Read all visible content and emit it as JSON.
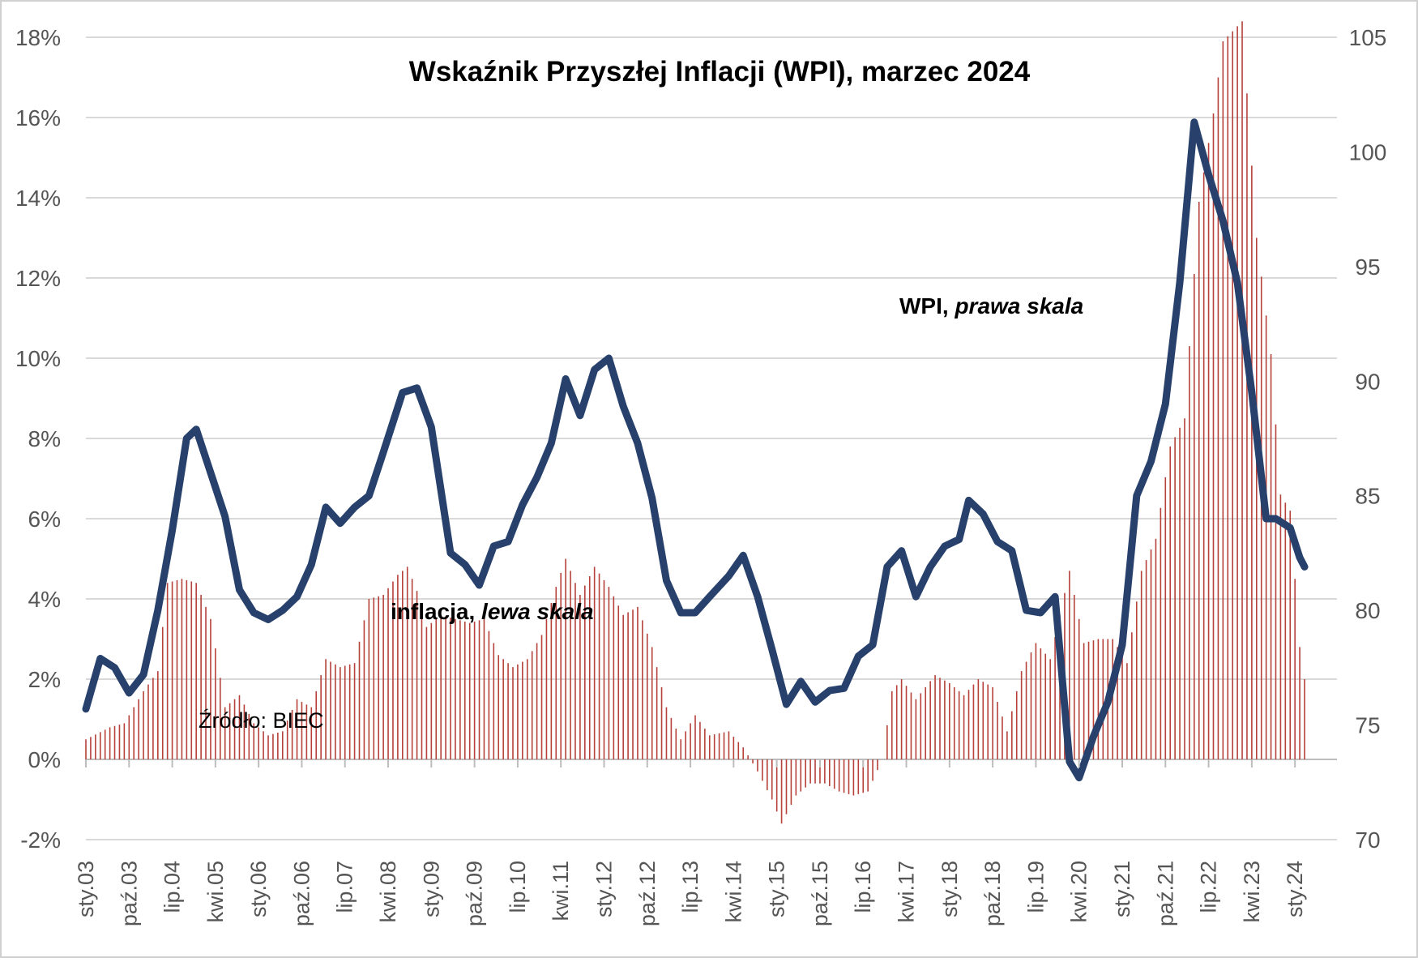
{
  "chart_data": {
    "type": "bar+line",
    "title": "Wskaźnik Przyszłej Inflacji (WPI), marzec 2024",
    "source": "Źródło: BIEC",
    "left_axis": {
      "ticks": [
        "-2%",
        "0%",
        "2%",
        "4%",
        "6%",
        "8%",
        "10%",
        "12%",
        "14%",
        "16%",
        "18%"
      ],
      "min": -2,
      "max": 18,
      "unit": "%"
    },
    "right_axis": {
      "ticks": [
        "70",
        "75",
        "80",
        "85",
        "90",
        "95",
        "100",
        "105"
      ],
      "min": 70,
      "max": 105
    },
    "x_tick_labels": [
      "sty.03",
      "paź.03",
      "lip.04",
      "kwi.05",
      "sty.06",
      "paź.06",
      "lip.07",
      "kwi.08",
      "sty.09",
      "paź.09",
      "lip.10",
      "kwi.11",
      "sty.12",
      "paź.12",
      "lip.13",
      "kwi.14",
      "sty.15",
      "paź.15",
      "lip.16",
      "kwi.17",
      "sty.18",
      "paź.18",
      "lip.19",
      "kwi.20",
      "sty.21",
      "paź.21",
      "lip.22",
      "kwi.23",
      "sty.24"
    ],
    "x_start": "2003-01",
    "x_end": "2024-03",
    "series": [
      {
        "name": "inflacja, lewa skala",
        "label_main": "inflacja, ",
        "label_italic": "lewa skala",
        "kind": "bar",
        "axis": "left",
        "color": "#B5413A",
        "anchors": [
          [
            "2003-01",
            0.5
          ],
          [
            "2003-06",
            0.8
          ],
          [
            "2003-09",
            0.9
          ],
          [
            "2004-01",
            1.7
          ],
          [
            "2004-04",
            2.2
          ],
          [
            "2004-06",
            4.4
          ],
          [
            "2004-09",
            4.5
          ],
          [
            "2004-12",
            4.4
          ],
          [
            "2005-03",
            3.5
          ],
          [
            "2005-06",
            1.3
          ],
          [
            "2005-09",
            1.6
          ],
          [
            "2005-12",
            0.9
          ],
          [
            "2006-03",
            0.6
          ],
          [
            "2006-06",
            0.7
          ],
          [
            "2006-09",
            1.5
          ],
          [
            "2006-12",
            1.3
          ],
          [
            "2007-03",
            2.5
          ],
          [
            "2007-06",
            2.3
          ],
          [
            "2007-09",
            2.4
          ],
          [
            "2007-12",
            4.0
          ],
          [
            "2008-03",
            4.1
          ],
          [
            "2008-06",
            4.6
          ],
          [
            "2008-08",
            4.8
          ],
          [
            "2008-10",
            4.2
          ],
          [
            "2008-12",
            3.3
          ],
          [
            "2009-03",
            3.6
          ],
          [
            "2009-06",
            3.5
          ],
          [
            "2009-09",
            3.4
          ],
          [
            "2009-12",
            3.5
          ],
          [
            "2010-03",
            2.6
          ],
          [
            "2010-06",
            2.3
          ],
          [
            "2010-09",
            2.5
          ],
          [
            "2010-12",
            3.1
          ],
          [
            "2011-03",
            4.3
          ],
          [
            "2011-05",
            5.0
          ],
          [
            "2011-08",
            4.1
          ],
          [
            "2011-11",
            4.8
          ],
          [
            "2012-02",
            4.3
          ],
          [
            "2012-05",
            3.6
          ],
          [
            "2012-08",
            3.8
          ],
          [
            "2012-11",
            2.8
          ],
          [
            "2013-02",
            1.3
          ],
          [
            "2013-05",
            0.5
          ],
          [
            "2013-08",
            1.1
          ],
          [
            "2013-11",
            0.6
          ],
          [
            "2014-03",
            0.7
          ],
          [
            "2014-06",
            0.3
          ],
          [
            "2014-09",
            -0.3
          ],
          [
            "2014-12",
            -1.0
          ],
          [
            "2015-02",
            -1.6
          ],
          [
            "2015-05",
            -0.9
          ],
          [
            "2015-08",
            -0.6
          ],
          [
            "2015-11",
            -0.6
          ],
          [
            "2016-02",
            -0.8
          ],
          [
            "2016-05",
            -0.9
          ],
          [
            "2016-08",
            -0.8
          ],
          [
            "2016-11",
            0.0
          ],
          [
            "2017-01",
            1.7
          ],
          [
            "2017-03",
            2.0
          ],
          [
            "2017-06",
            1.5
          ],
          [
            "2017-10",
            2.1
          ],
          [
            "2018-01",
            1.9
          ],
          [
            "2018-04",
            1.6
          ],
          [
            "2018-07",
            2.0
          ],
          [
            "2018-10",
            1.8
          ],
          [
            "2019-01",
            0.7
          ],
          [
            "2019-04",
            2.2
          ],
          [
            "2019-07",
            2.9
          ],
          [
            "2019-10",
            2.5
          ],
          [
            "2020-02",
            4.7
          ],
          [
            "2020-05",
            2.9
          ],
          [
            "2020-08",
            3.0
          ],
          [
            "2020-11",
            3.0
          ],
          [
            "2021-02",
            2.4
          ],
          [
            "2021-05",
            4.7
          ],
          [
            "2021-08",
            5.5
          ],
          [
            "2021-11",
            7.8
          ],
          [
            "2022-02",
            8.5
          ],
          [
            "2022-05",
            13.9
          ],
          [
            "2022-08",
            16.1
          ],
          [
            "2022-10",
            17.9
          ],
          [
            "2023-02",
            18.4
          ],
          [
            "2023-05",
            13.0
          ],
          [
            "2023-08",
            10.1
          ],
          [
            "2023-10",
            6.6
          ],
          [
            "2023-12",
            6.2
          ],
          [
            "2024-02",
            2.8
          ],
          [
            "2024-03",
            2.0
          ]
        ]
      },
      {
        "name": "WPI, prawa skala",
        "label_main": "WPI, ",
        "label_italic": "prawa skala",
        "kind": "line",
        "axis": "right",
        "color": "#27416C",
        "anchors": [
          [
            "2003-01",
            75.7
          ],
          [
            "2003-04",
            77.9
          ],
          [
            "2003-07",
            77.5
          ],
          [
            "2003-10",
            76.4
          ],
          [
            "2004-01",
            77.2
          ],
          [
            "2004-04",
            80.0
          ],
          [
            "2004-07",
            83.5
          ],
          [
            "2004-10",
            87.5
          ],
          [
            "2004-12",
            87.9
          ],
          [
            "2005-03",
            86.0
          ],
          [
            "2005-06",
            84.1
          ],
          [
            "2005-09",
            80.9
          ],
          [
            "2005-12",
            79.9
          ],
          [
            "2006-03",
            79.6
          ],
          [
            "2006-06",
            80.0
          ],
          [
            "2006-09",
            80.6
          ],
          [
            "2006-12",
            82.0
          ],
          [
            "2007-03",
            84.5
          ],
          [
            "2007-06",
            83.8
          ],
          [
            "2007-09",
            84.5
          ],
          [
            "2007-12",
            85.0
          ],
          [
            "2008-03",
            86.9
          ],
          [
            "2008-07",
            89.5
          ],
          [
            "2008-10",
            89.7
          ],
          [
            "2009-01",
            88.0
          ],
          [
            "2009-05",
            82.5
          ],
          [
            "2009-08",
            82.0
          ],
          [
            "2009-11",
            81.1
          ],
          [
            "2010-02",
            82.8
          ],
          [
            "2010-05",
            83.0
          ],
          [
            "2010-08",
            84.6
          ],
          [
            "2010-11",
            85.8
          ],
          [
            "2011-02",
            87.3
          ],
          [
            "2011-05",
            90.1
          ],
          [
            "2011-08",
            88.5
          ],
          [
            "2011-11",
            90.5
          ],
          [
            "2012-02",
            91.0
          ],
          [
            "2012-05",
            88.9
          ],
          [
            "2012-08",
            87.3
          ],
          [
            "2012-11",
            84.9
          ],
          [
            "2013-02",
            81.3
          ],
          [
            "2013-05",
            79.9
          ],
          [
            "2013-08",
            79.9
          ],
          [
            "2013-11",
            80.6
          ],
          [
            "2014-03",
            81.5
          ],
          [
            "2014-06",
            82.4
          ],
          [
            "2014-09",
            80.6
          ],
          [
            "2014-12",
            78.3
          ],
          [
            "2015-03",
            75.9
          ],
          [
            "2015-06",
            76.9
          ],
          [
            "2015-09",
            76.0
          ],
          [
            "2015-12",
            76.5
          ],
          [
            "2016-03",
            76.6
          ],
          [
            "2016-06",
            78.0
          ],
          [
            "2016-09",
            78.5
          ],
          [
            "2016-12",
            81.9
          ],
          [
            "2017-03",
            82.6
          ],
          [
            "2017-06",
            80.6
          ],
          [
            "2017-09",
            81.9
          ],
          [
            "2017-12",
            82.8
          ],
          [
            "2018-03",
            83.1
          ],
          [
            "2018-05",
            84.8
          ],
          [
            "2018-08",
            84.2
          ],
          [
            "2018-11",
            83.0
          ],
          [
            "2019-02",
            82.6
          ],
          [
            "2019-05",
            80.0
          ],
          [
            "2019-08",
            79.9
          ],
          [
            "2019-11",
            80.6
          ],
          [
            "2020-02",
            73.4
          ],
          [
            "2020-04",
            72.7
          ],
          [
            "2020-07",
            74.5
          ],
          [
            "2020-10",
            76.0
          ],
          [
            "2021-01",
            78.5
          ],
          [
            "2021-04",
            85.0
          ],
          [
            "2021-07",
            86.5
          ],
          [
            "2021-10",
            89.0
          ],
          [
            "2022-01",
            94.3
          ],
          [
            "2022-04",
            101.3
          ],
          [
            "2022-07",
            99.0
          ],
          [
            "2022-10",
            97.0
          ],
          [
            "2023-01",
            94.3
          ],
          [
            "2023-04",
            89.5
          ],
          [
            "2023-07",
            84.0
          ],
          [
            "2023-09",
            84.0
          ],
          [
            "2023-12",
            83.6
          ],
          [
            "2024-02",
            82.3
          ],
          [
            "2024-03",
            81.9
          ]
        ]
      }
    ],
    "grid": "horizontal"
  }
}
